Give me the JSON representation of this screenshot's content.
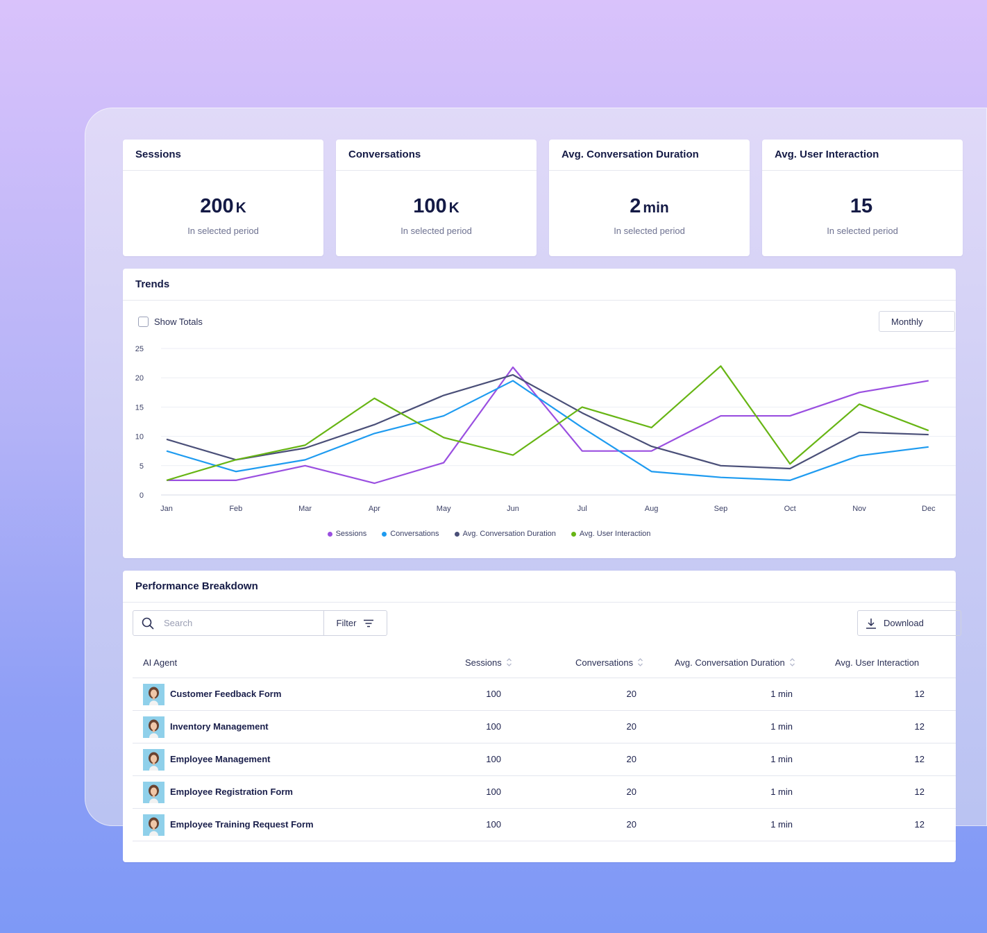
{
  "stats": [
    {
      "title": "Sessions",
      "value": "200",
      "unit": "K",
      "sub": "In selected period"
    },
    {
      "title": "Conversations",
      "value": "100",
      "unit": "K",
      "sub": "In selected period"
    },
    {
      "title": "Avg. Conversation Duration",
      "value": "2",
      "unit": "min",
      "sub": "In selected period"
    },
    {
      "title": "Avg. User Interaction",
      "value": "15",
      "unit": "",
      "sub": "In selected period"
    }
  ],
  "trends": {
    "title": "Trends",
    "show_totals_label": "Show Totals",
    "period_select": "Monthly"
  },
  "chart_data": {
    "type": "line",
    "categories": [
      "Jan",
      "Feb",
      "Mar",
      "Apr",
      "May",
      "Jun",
      "Jul",
      "Aug",
      "Sep",
      "Oct",
      "Nov",
      "Dec"
    ],
    "ylim": [
      0,
      25
    ],
    "yticks": [
      0,
      5,
      10,
      15,
      20,
      25
    ],
    "grid": true,
    "legend": "bottom",
    "series": [
      {
        "name": "Sessions",
        "color": "#9a4fe0",
        "values": [
          2.5,
          2.5,
          5,
          2,
          5.5,
          21.8,
          7.5,
          7.5,
          13.5,
          13.5,
          17.5,
          19.5
        ]
      },
      {
        "name": "Conversations",
        "color": "#1e9bf0",
        "values": [
          7.5,
          4,
          6,
          10.5,
          13.5,
          19.5,
          11.5,
          4,
          3,
          2.5,
          6.7,
          8.2
        ]
      },
      {
        "name": "Avg. Conversation Duration",
        "color": "#4a4f78",
        "values": [
          9.5,
          6,
          8,
          12,
          17,
          20.5,
          14,
          8.3,
          5,
          4.5,
          10.7,
          10.3
        ]
      },
      {
        "name": "Avg. User Interaction",
        "color": "#67b514",
        "values": [
          2.5,
          6,
          8.5,
          16.5,
          9.8,
          6.8,
          15,
          11.5,
          22,
          5.3,
          15.5,
          11
        ]
      }
    ]
  },
  "performance": {
    "title": "Performance Breakdown",
    "search_placeholder": "Search",
    "filter_label": "Filter",
    "download_label": "Download",
    "columns": [
      "AI Agent",
      "Sessions",
      "Conversations",
      "Avg. Conversation Duration",
      "Avg. User Interaction"
    ],
    "rows": [
      {
        "agent": "Customer Feedback Form",
        "sessions": "100",
        "conversations": "20",
        "duration": "1 min",
        "interaction": "12"
      },
      {
        "agent": "Inventory Management",
        "sessions": "100",
        "conversations": "20",
        "duration": "1 min",
        "interaction": "12"
      },
      {
        "agent": "Employee Management",
        "sessions": "100",
        "conversations": "20",
        "duration": "1 min",
        "interaction": "12"
      },
      {
        "agent": "Employee Registration Form",
        "sessions": "100",
        "conversations": "20",
        "duration": "1 min",
        "interaction": "12"
      },
      {
        "agent": "Employee Training Request Form",
        "sessions": "100",
        "conversations": "20",
        "duration": "1 min",
        "interaction": "12"
      }
    ]
  }
}
